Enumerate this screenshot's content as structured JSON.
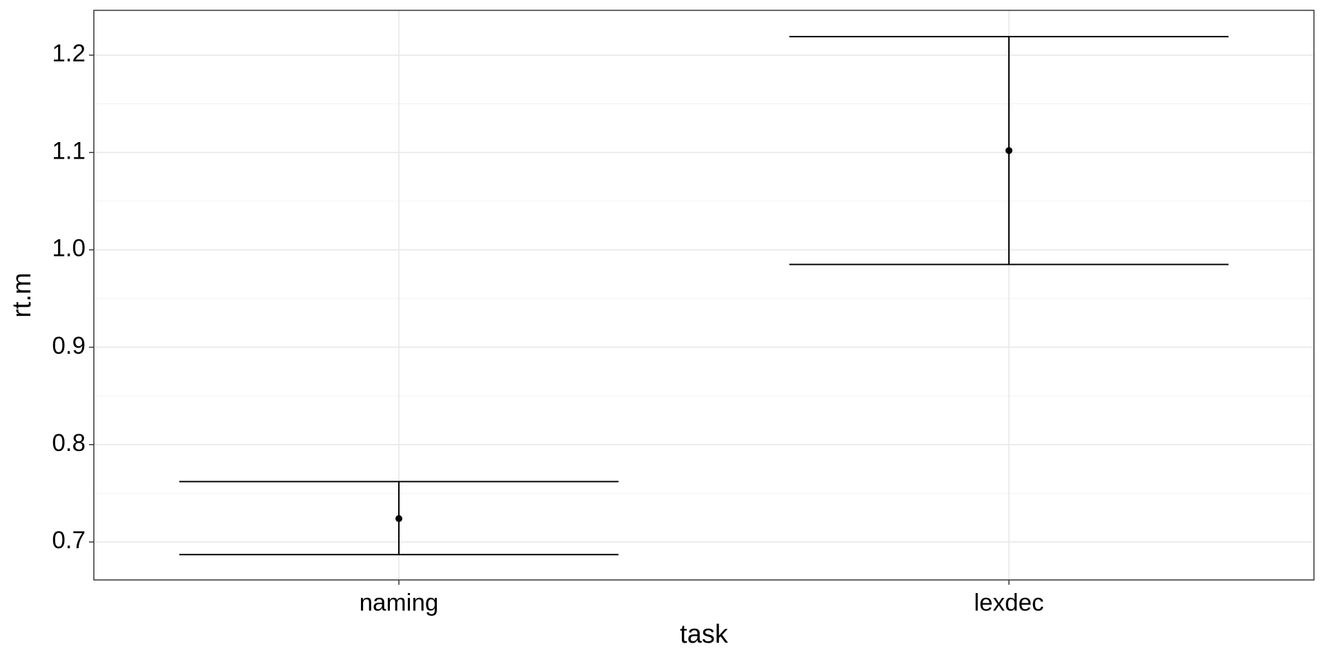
{
  "chart_data": {
    "type": "errorbar",
    "x_label": "task",
    "y_label": "rt.m",
    "categories": [
      "naming",
      "lexdec"
    ],
    "values": [
      0.724,
      1.102
    ],
    "lower": [
      0.687,
      0.985
    ],
    "upper": [
      0.762,
      1.219
    ],
    "color": "#000000",
    "ylim": [
      0.661,
      1.246
    ],
    "yticks": [
      {
        "value": 0.7,
        "label": "0.7"
      },
      {
        "value": 0.8,
        "label": "0.8"
      },
      {
        "value": 0.9,
        "label": "0.9"
      },
      {
        "value": 1.0,
        "label": "1.0"
      },
      {
        "value": 1.1,
        "label": "1.1"
      },
      {
        "value": 1.2,
        "label": "1.2"
      }
    ],
    "grid": true
  }
}
